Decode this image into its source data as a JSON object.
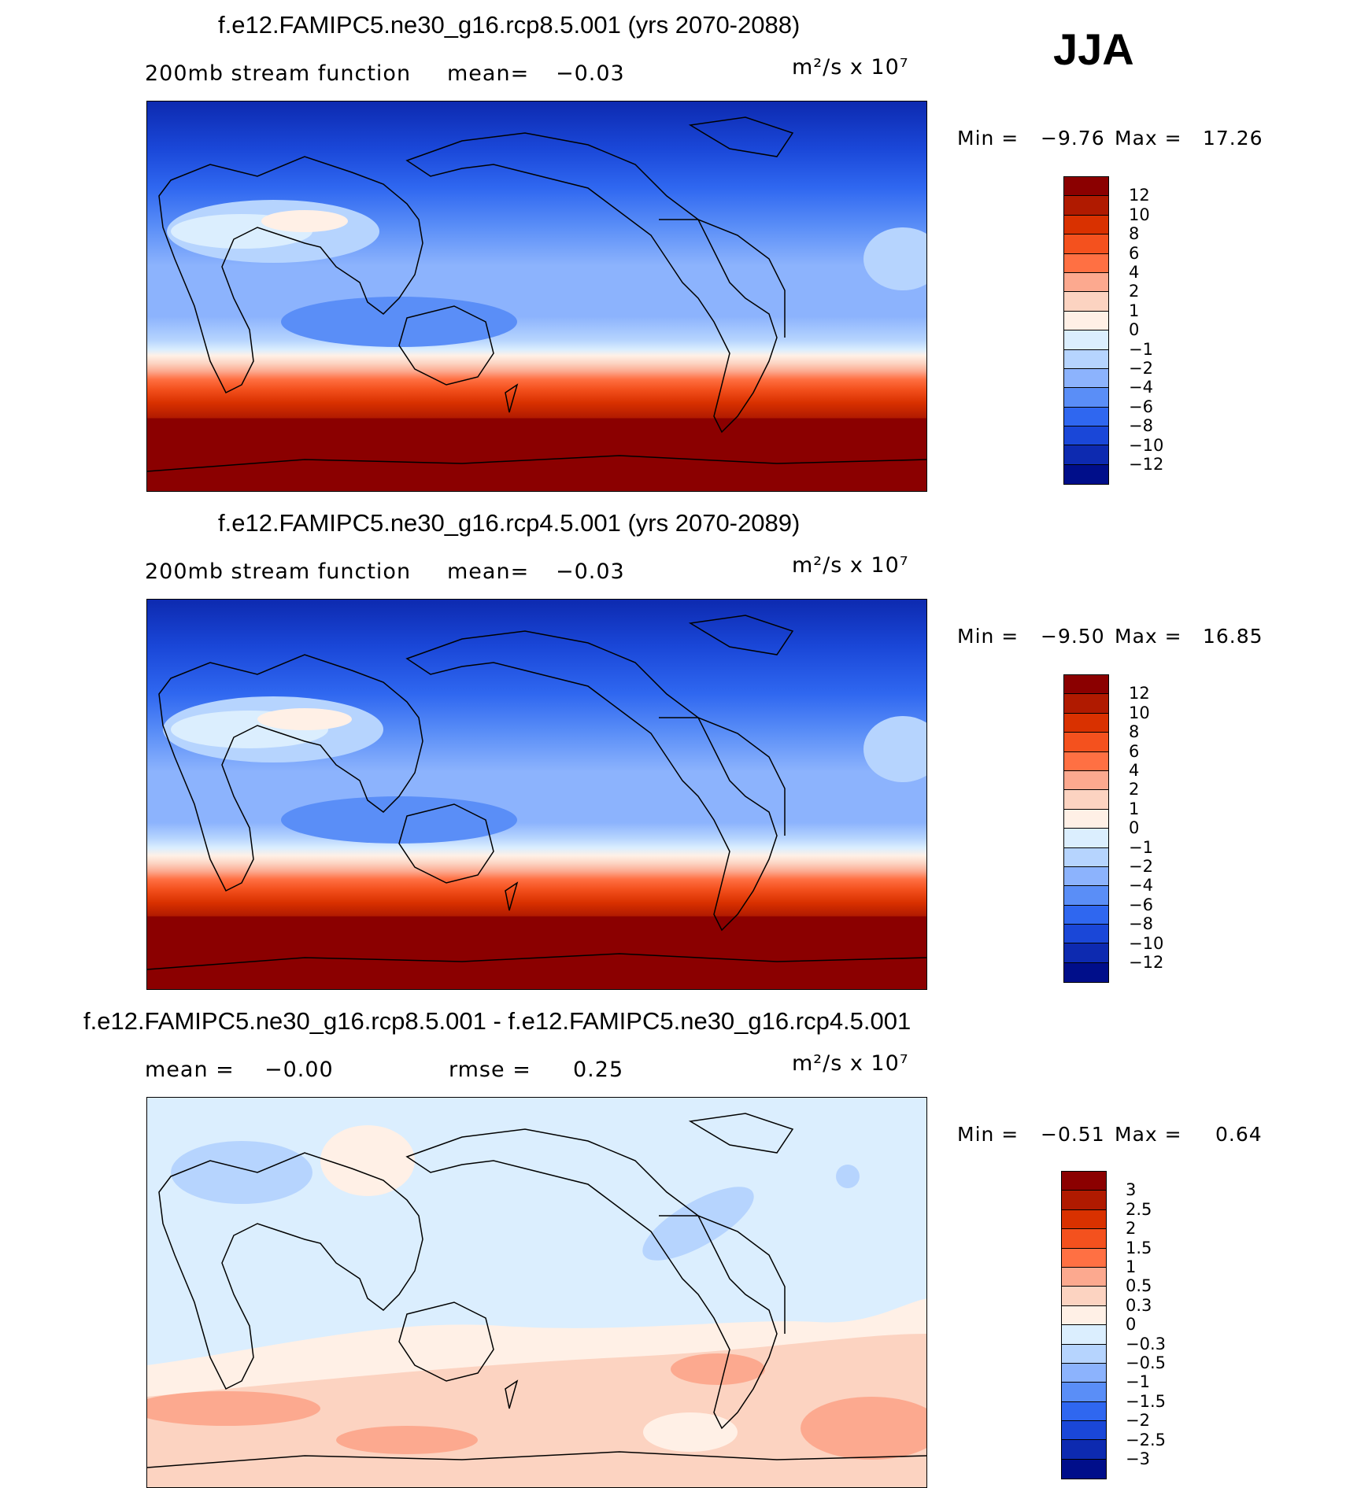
{
  "season": "JJA",
  "panels": [
    {
      "title": "f.e12.FAMIPC5.ne30_g16.rcp8.5.001 (yrs 2070-2088)",
      "left_text": "200mb stream function",
      "mean_label": "mean=",
      "mean_value": "−0.03",
      "units": "m²/s x 10⁷",
      "min_label": "Min =",
      "min_value": "−9.76",
      "max_label": "Max =",
      "max_value": "17.26",
      "colorbar": {
        "labels": [
          "12",
          "10",
          "8",
          "6",
          "4",
          "2",
          "1",
          "0",
          "−1",
          "−2",
          "−4",
          "−6",
          "−8",
          "−10",
          "−12"
        ],
        "colors": [
          "#8b0000",
          "#b01a00",
          "#d93100",
          "#f4511e",
          "#ff7043",
          "#fca98f",
          "#fcd3c1",
          "#fff0e6",
          "#dbeefe",
          "#b6d4fe",
          "#8cb3fd",
          "#5a8ef7",
          "#2f67f0",
          "#1a47d8",
          "#0d2ab0",
          "#000e8a"
        ]
      }
    },
    {
      "title": "f.e12.FAMIPC5.ne30_g16.rcp4.5.001 (yrs 2070-2089)",
      "left_text": "200mb stream function",
      "mean_label": "mean=",
      "mean_value": "−0.03",
      "units": "m²/s x 10⁷",
      "min_label": "Min =",
      "min_value": "−9.50",
      "max_label": "Max =",
      "max_value": "16.85",
      "colorbar": {
        "labels": [
          "12",
          "10",
          "8",
          "6",
          "4",
          "2",
          "1",
          "0",
          "−1",
          "−2",
          "−4",
          "−6",
          "−8",
          "−10",
          "−12"
        ],
        "colors": [
          "#8b0000",
          "#b01a00",
          "#d93100",
          "#f4511e",
          "#ff7043",
          "#fca98f",
          "#fcd3c1",
          "#fff0e6",
          "#dbeefe",
          "#b6d4fe",
          "#8cb3fd",
          "#5a8ef7",
          "#2f67f0",
          "#1a47d8",
          "#0d2ab0",
          "#000e8a"
        ]
      }
    },
    {
      "title": "f.e12.FAMIPC5.ne30_g16.rcp8.5.001 - f.e12.FAMIPC5.ne30_g16.rcp4.5.001",
      "mean_label": "mean =",
      "mean_value": "−0.00",
      "rmse_label": "rmse =",
      "rmse_value": "0.25",
      "units": "m²/s x 10⁷",
      "min_label": "Min =",
      "min_value": "−0.51",
      "max_label": "Max =",
      "max_value": "0.64",
      "colorbar": {
        "labels": [
          "3",
          "2.5",
          "2",
          "1.5",
          "1",
          "0.5",
          "0.3",
          "0",
          "−0.3",
          "−0.5",
          "−1",
          "−1.5",
          "−2",
          "−2.5",
          "−3"
        ],
        "colors": [
          "#8b0000",
          "#b01a00",
          "#d93100",
          "#f4511e",
          "#ff7043",
          "#fca98f",
          "#fcd3c1",
          "#fff0e6",
          "#dbeefe",
          "#b6d4fe",
          "#8cb3fd",
          "#5a8ef7",
          "#2f67f0",
          "#1a47d8",
          "#0d2ab0",
          "#000e8a"
        ]
      }
    }
  ]
}
